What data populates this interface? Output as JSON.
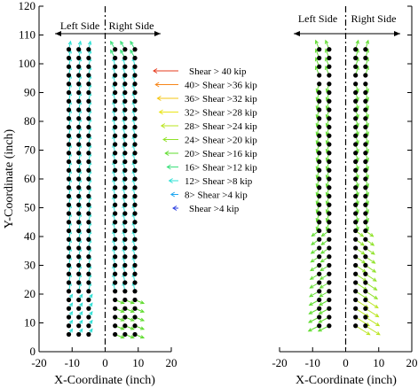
{
  "chart_data": {
    "type": "scatter",
    "ylabel": "Y-Coordinate (inch)",
    "y_ticks": [
      "0",
      "10",
      "20",
      "30",
      "40",
      "50",
      "60",
      "70",
      "80",
      "90",
      "100",
      "110",
      "120"
    ],
    "ylim": [
      0,
      120
    ],
    "panels": [
      {
        "xlabel": "X-Coordinate (inch)",
        "x_ticks": [
          "-20",
          "-10",
          "0",
          "10",
          "20"
        ],
        "xlim": [
          -20,
          20
        ],
        "side_labels": {
          "left": "Left Side",
          "right": "Right Side"
        },
        "bolt_columns": [
          -11,
          -8,
          -5,
          3,
          6,
          9
        ],
        "rows": {
          "start": 6,
          "end": 105,
          "step": 3
        }
      },
      {
        "xlabel": "X-Coordinate (inch)",
        "x_ticks": [
          "-20",
          "-10",
          "0",
          "10",
          "20"
        ],
        "xlim": [
          -20,
          20
        ],
        "side_labels": {
          "left": "Left Side",
          "right": "Right Side"
        },
        "bolt_columns": [
          -8,
          -5,
          3,
          6
        ],
        "rows": {
          "start": 9,
          "end": 105,
          "step": 3
        }
      }
    ],
    "legend": [
      {
        "label": "Shear > 40 kip",
        "color": "#e63b1e"
      },
      {
        "label": "40> Shear >36 kip",
        "color": "#f7861a"
      },
      {
        "label": "36> Shear >32 kip",
        "color": "#f5c511"
      },
      {
        "label": "32> Shear >28 kip",
        "color": "#e9e516"
      },
      {
        "label": "28> Shear >24 kip",
        "color": "#b9e51e"
      },
      {
        "label": "24> Shear >20 kip",
        "color": "#8fe228"
      },
      {
        "label": "20> Shear >16 kip",
        "color": "#5fdc2e"
      },
      {
        "label": "16> Shear >12 kip",
        "color": "#3ae07a"
      },
      {
        "label": "12> Shear >8 kip",
        "color": "#2de0d5"
      },
      {
        "label": "8> Shear >4 kip",
        "color": "#1fa6f0"
      },
      {
        "label": "Shear >4 kip",
        "color": "#2b3ee0"
      }
    ]
  }
}
